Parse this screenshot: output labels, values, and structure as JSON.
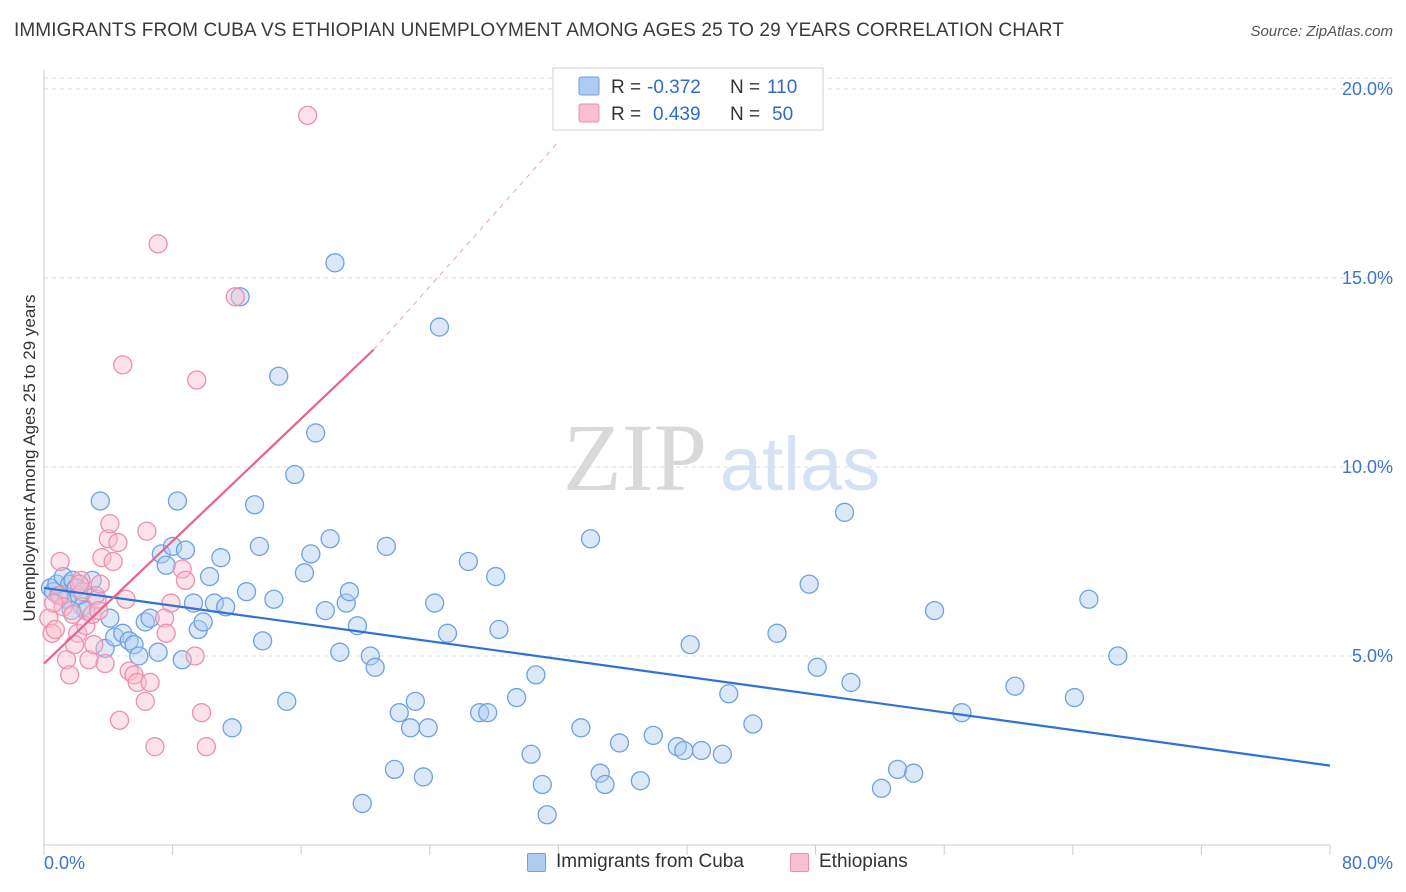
{
  "header": {
    "title": "IMMIGRANTS FROM CUBA VS ETHIOPIAN UNEMPLOYMENT AMONG AGES 25 TO 29 YEARS CORRELATION CHART",
    "source": "Source: ZipAtlas.com"
  },
  "watermark": {
    "zip": "ZIP",
    "atlas": "atlas"
  },
  "colors": {
    "blue_fill": "#aecbf0",
    "blue_stroke": "#6fa1e0",
    "blue_line": "#2f72d4",
    "pink_fill": "#f8bfd0",
    "pink_stroke": "#ee8fac",
    "pink_line": "#e8628e",
    "axis_text": "#3b74c9",
    "grid": "#dddddd"
  },
  "legend": {
    "rows": [
      {
        "r_label": "R =",
        "r_value": "-0.372",
        "n_label": "N =",
        "n_value": "110",
        "series": "cuba"
      },
      {
        "r_label": "R =",
        "r_value": "0.439",
        "n_label": "N =",
        "n_value": "50",
        "series": "ethiopians"
      }
    ]
  },
  "bottom_legend": {
    "cuba": "Immigrants from Cuba",
    "ethiopians": "Ethiopians"
  },
  "chart_data": {
    "type": "scatter",
    "title": "IMMIGRANTS FROM CUBA VS ETHIOPIAN UNEMPLOYMENT AMONG AGES 25 TO 29 YEARS CORRELATION CHART",
    "xlabel": "",
    "ylabel": "Unemployment Among Ages 25 to 29 years",
    "xlim": [
      0,
      80
    ],
    "ylim": [
      0,
      20.5
    ],
    "x_tick_labels": [
      "0.0%",
      "80.0%"
    ],
    "y_ticks": [
      5,
      10,
      15,
      20
    ],
    "y_tick_labels": [
      "5.0%",
      "10.0%",
      "15.0%",
      "20.0%"
    ],
    "grid": true,
    "series": [
      {
        "name": "Immigrants from Cuba",
        "color": "#6fa1e0",
        "trend": {
          "x": [
            0,
            80
          ],
          "y": [
            6.8,
            2.1
          ]
        },
        "points": [
          [
            0.4,
            6.8
          ],
          [
            0.6,
            6.7
          ],
          [
            0.8,
            6.9
          ],
          [
            1.0,
            6.6
          ],
          [
            1.2,
            7.1
          ],
          [
            1.4,
            6.5
          ],
          [
            1.6,
            6.9
          ],
          [
            1.8,
            7.0
          ],
          [
            2.0,
            6.8
          ],
          [
            2.2,
            6.6
          ],
          [
            2.4,
            6.3
          ],
          [
            2.6,
            6.2
          ],
          [
            3.0,
            7.0
          ],
          [
            3.2,
            6.6
          ],
          [
            3.5,
            9.1
          ],
          [
            3.8,
            5.2
          ],
          [
            4.1,
            6.0
          ],
          [
            4.4,
            5.5
          ],
          [
            4.9,
            5.6
          ],
          [
            5.3,
            5.4
          ],
          [
            5.6,
            5.3
          ],
          [
            5.9,
            5.0
          ],
          [
            6.3,
            5.9
          ],
          [
            6.6,
            6.0
          ],
          [
            7.1,
            5.1
          ],
          [
            7.3,
            7.7
          ],
          [
            7.6,
            7.4
          ],
          [
            8.0,
            7.9
          ],
          [
            8.3,
            9.1
          ],
          [
            8.6,
            4.9
          ],
          [
            8.8,
            7.8
          ],
          [
            9.3,
            6.4
          ],
          [
            9.6,
            5.7
          ],
          [
            9.9,
            5.9
          ],
          [
            10.3,
            7.1
          ],
          [
            10.6,
            6.4
          ],
          [
            11.0,
            7.6
          ],
          [
            11.3,
            6.3
          ],
          [
            11.7,
            3.1
          ],
          [
            12.2,
            14.5
          ],
          [
            12.6,
            6.7
          ],
          [
            13.1,
            9.0
          ],
          [
            13.4,
            7.9
          ],
          [
            13.6,
            5.4
          ],
          [
            14.3,
            6.5
          ],
          [
            14.6,
            12.4
          ],
          [
            15.1,
            3.8
          ],
          [
            15.6,
            9.8
          ],
          [
            16.2,
            7.2
          ],
          [
            16.6,
            7.7
          ],
          [
            16.9,
            10.9
          ],
          [
            17.5,
            6.2
          ],
          [
            17.8,
            8.1
          ],
          [
            18.1,
            15.4
          ],
          [
            18.4,
            5.1
          ],
          [
            18.8,
            6.4
          ],
          [
            19.0,
            6.7
          ],
          [
            19.5,
            5.8
          ],
          [
            19.8,
            1.1
          ],
          [
            20.3,
            5.0
          ],
          [
            20.6,
            4.7
          ],
          [
            21.3,
            7.9
          ],
          [
            21.8,
            2.0
          ],
          [
            22.1,
            3.5
          ],
          [
            22.8,
            3.1
          ],
          [
            23.1,
            3.8
          ],
          [
            23.6,
            1.8
          ],
          [
            23.9,
            3.1
          ],
          [
            24.3,
            6.4
          ],
          [
            24.6,
            13.7
          ],
          [
            25.1,
            5.6
          ],
          [
            26.4,
            7.5
          ],
          [
            27.1,
            3.5
          ],
          [
            27.6,
            3.5
          ],
          [
            28.1,
            7.1
          ],
          [
            28.3,
            5.7
          ],
          [
            29.4,
            3.9
          ],
          [
            30.3,
            2.4
          ],
          [
            30.6,
            4.5
          ],
          [
            31.0,
            1.6
          ],
          [
            31.3,
            0.8
          ],
          [
            33.4,
            3.1
          ],
          [
            34.0,
            8.1
          ],
          [
            34.6,
            1.9
          ],
          [
            34.9,
            1.6
          ],
          [
            35.8,
            2.7
          ],
          [
            37.1,
            1.7
          ],
          [
            37.9,
            2.9
          ],
          [
            39.4,
            2.6
          ],
          [
            39.8,
            2.5
          ],
          [
            40.2,
            5.3
          ],
          [
            40.9,
            2.5
          ],
          [
            42.2,
            2.4
          ],
          [
            42.6,
            4.0
          ],
          [
            44.1,
            3.2
          ],
          [
            45.6,
            5.6
          ],
          [
            47.6,
            6.9
          ],
          [
            48.1,
            4.7
          ],
          [
            49.8,
            8.8
          ],
          [
            50.2,
            4.3
          ],
          [
            52.1,
            1.5
          ],
          [
            53.1,
            2.0
          ],
          [
            54.1,
            1.9
          ],
          [
            55.4,
            6.2
          ],
          [
            57.1,
            3.5
          ],
          [
            60.4,
            4.2
          ],
          [
            64.1,
            3.9
          ],
          [
            65.0,
            6.5
          ],
          [
            66.8,
            5.0
          ],
          [
            1.7,
            6.2
          ]
        ]
      },
      {
        "name": "Ethiopians",
        "color": "#ee8fac",
        "trend": {
          "x": [
            0,
            20.5
          ],
          "y": [
            4.8,
            13.1
          ]
        },
        "trend_ext": {
          "x": [
            20.5,
            32.0
          ],
          "y": [
            13.1,
            18.6
          ]
        },
        "points": [
          [
            0.3,
            6.0
          ],
          [
            0.5,
            5.6
          ],
          [
            0.7,
            5.7
          ],
          [
            0.9,
            6.6
          ],
          [
            1.0,
            7.5
          ],
          [
            1.2,
            6.3
          ],
          [
            1.4,
            4.9
          ],
          [
            1.6,
            4.5
          ],
          [
            1.8,
            6.1
          ],
          [
            2.1,
            5.6
          ],
          [
            2.3,
            7.0
          ],
          [
            2.4,
            6.7
          ],
          [
            2.6,
            5.8
          ],
          [
            2.8,
            4.9
          ],
          [
            3.0,
            6.1
          ],
          [
            3.1,
            5.3
          ],
          [
            3.3,
            6.5
          ],
          [
            3.5,
            6.9
          ],
          [
            3.6,
            7.6
          ],
          [
            3.8,
            4.8
          ],
          [
            4.0,
            8.1
          ],
          [
            4.1,
            8.5
          ],
          [
            4.3,
            7.5
          ],
          [
            4.6,
            8.0
          ],
          [
            4.7,
            3.3
          ],
          [
            4.9,
            12.7
          ],
          [
            5.1,
            6.5
          ],
          [
            5.3,
            4.6
          ],
          [
            5.6,
            4.5
          ],
          [
            5.8,
            4.3
          ],
          [
            6.3,
            3.8
          ],
          [
            6.4,
            8.3
          ],
          [
            6.6,
            4.3
          ],
          [
            6.9,
            2.6
          ],
          [
            7.1,
            15.9
          ],
          [
            7.5,
            6.0
          ],
          [
            7.6,
            5.6
          ],
          [
            7.9,
            6.4
          ],
          [
            8.6,
            7.3
          ],
          [
            8.8,
            7.0
          ],
          [
            9.4,
            5.0
          ],
          [
            9.5,
            12.3
          ],
          [
            9.8,
            3.5
          ],
          [
            10.1,
            2.6
          ],
          [
            11.9,
            14.5
          ],
          [
            16.4,
            19.3
          ],
          [
            0.6,
            6.4
          ],
          [
            1.9,
            5.3
          ],
          [
            2.2,
            6.9
          ],
          [
            3.4,
            6.2
          ]
        ]
      }
    ]
  }
}
